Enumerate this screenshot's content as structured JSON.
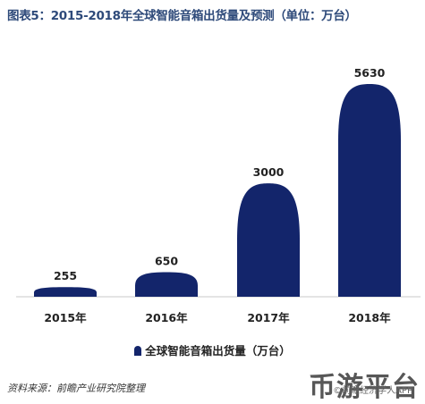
{
  "chart_data": {
    "type": "bar",
    "title": "图表5：2015-2018年全球智能音箱出货量及预测（单位：万台）",
    "categories": [
      "2015年",
      "2016年",
      "2017年",
      "2018年"
    ],
    "series": [
      {
        "name": "全球智能音箱出货量（万台）",
        "values": [
          255,
          650,
          3000,
          5630
        ]
      }
    ],
    "data_labels": [
      "255",
      "650",
      "3000",
      "5630"
    ],
    "ylim": [
      0,
      5630
    ],
    "grid": false,
    "legend_position": "bottom",
    "colors": {
      "bar": "#13256b",
      "title": "#2e4a7a"
    }
  },
  "source_text": "资料来源：前瞻产业研究院整理",
  "watermark": {
    "main": "币游平台",
    "sub": "©前瞻经济学人APP"
  }
}
